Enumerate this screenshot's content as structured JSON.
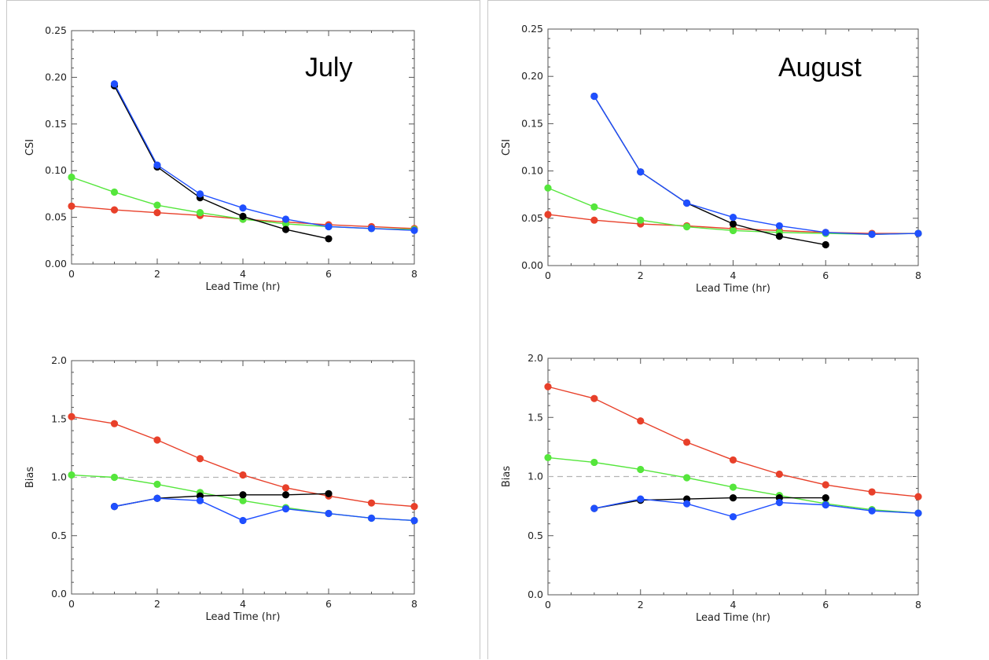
{
  "panels": [
    {
      "label": "July"
    },
    {
      "label": "August"
    }
  ],
  "colors": {
    "black": "#000000",
    "blue": "#1f4fff",
    "green": "#55e63c",
    "red": "#e8402a",
    "refline": "#b4b4b4"
  },
  "chart_data": [
    {
      "type": "line",
      "panel": "July",
      "xlabel": "Lead Time (hr)",
      "ylabel": "CSI",
      "xlim": [
        0,
        8
      ],
      "ylim": [
        0,
        0.25
      ],
      "xticks": [
        "0",
        "2",
        "4",
        "6",
        "8"
      ],
      "yticks": [
        "0.00",
        "0.05",
        "0.10",
        "0.15",
        "0.20",
        "0.25"
      ],
      "series": [
        {
          "color": "red",
          "x": [
            0,
            1,
            2,
            3,
            4,
            5,
            6,
            7,
            8
          ],
          "y": [
            0.062,
            0.058,
            0.055,
            0.052,
            0.048,
            0.045,
            0.042,
            0.04,
            0.038
          ]
        },
        {
          "color": "green",
          "x": [
            0,
            1,
            2,
            3,
            4,
            5,
            6,
            7,
            8
          ],
          "y": [
            0.093,
            0.077,
            0.063,
            0.055,
            0.048,
            0.043,
            0.04,
            0.038,
            0.037
          ]
        },
        {
          "color": "black",
          "x": [
            1,
            2,
            3,
            4,
            5,
            6
          ],
          "y": [
            0.191,
            0.104,
            0.071,
            0.051,
            0.037,
            0.027
          ]
        },
        {
          "color": "blue",
          "x": [
            1,
            2,
            3,
            4,
            5,
            6,
            7,
            8
          ],
          "y": [
            0.193,
            0.106,
            0.075,
            0.06,
            0.048,
            0.04,
            0.038,
            0.036
          ]
        }
      ]
    },
    {
      "type": "line",
      "panel": "July",
      "xlabel": "Lead Time (hr)",
      "ylabel": "Bias",
      "xlim": [
        0,
        8
      ],
      "ylim": [
        0,
        2
      ],
      "refline": 1.0,
      "xticks": [
        "0",
        "2",
        "4",
        "6",
        "8"
      ],
      "yticks": [
        "0.0",
        "0.5",
        "1.0",
        "1.5",
        "2.0"
      ],
      "series": [
        {
          "color": "red",
          "x": [
            0,
            1,
            2,
            3,
            4,
            5,
            6,
            7,
            8
          ],
          "y": [
            1.52,
            1.46,
            1.32,
            1.16,
            1.02,
            0.91,
            0.84,
            0.78,
            0.75
          ]
        },
        {
          "color": "green",
          "x": [
            0,
            1,
            2,
            3,
            4,
            5,
            6,
            7,
            8
          ],
          "y": [
            1.02,
            1.0,
            0.94,
            0.87,
            0.8,
            0.74,
            0.69,
            0.65,
            0.63
          ]
        },
        {
          "color": "black",
          "x": [
            1,
            2,
            3,
            4,
            5,
            6
          ],
          "y": [
            0.75,
            0.82,
            0.84,
            0.85,
            0.85,
            0.86
          ]
        },
        {
          "color": "blue",
          "x": [
            1,
            2,
            3,
            4,
            5,
            6,
            7,
            8
          ],
          "y": [
            0.75,
            0.82,
            0.8,
            0.63,
            0.73,
            0.69,
            0.65,
            0.63
          ]
        }
      ]
    },
    {
      "type": "line",
      "panel": "August",
      "xlabel": "Lead Time (hr)",
      "ylabel": "CSI",
      "xlim": [
        0,
        8
      ],
      "ylim": [
        0,
        0.25
      ],
      "xticks": [
        "0",
        "2",
        "4",
        "6",
        "8"
      ],
      "yticks": [
        "0.00",
        "0.05",
        "0.10",
        "0.15",
        "0.20",
        "0.25"
      ],
      "series": [
        {
          "color": "red",
          "x": [
            0,
            1,
            2,
            3,
            4,
            5,
            6,
            7,
            8
          ],
          "y": [
            0.054,
            0.048,
            0.044,
            0.042,
            0.039,
            0.037,
            0.035,
            0.034,
            0.034
          ]
        },
        {
          "color": "green",
          "x": [
            0,
            1,
            2,
            3,
            4,
            5,
            6,
            7,
            8
          ],
          "y": [
            0.082,
            0.062,
            0.048,
            0.041,
            0.037,
            0.035,
            0.034,
            0.033,
            0.034
          ]
        },
        {
          "color": "black",
          "x": [
            1,
            2,
            3,
            4,
            5,
            6
          ],
          "y": [
            0.179,
            0.099,
            0.066,
            0.044,
            0.031,
            0.022
          ]
        },
        {
          "color": "blue",
          "x": [
            1,
            2,
            3,
            4,
            5,
            6,
            7,
            8
          ],
          "y": [
            0.179,
            0.099,
            0.066,
            0.051,
            0.042,
            0.035,
            0.033,
            0.034
          ]
        }
      ]
    },
    {
      "type": "line",
      "panel": "August",
      "xlabel": "Lead Time (hr)",
      "ylabel": "Bias",
      "xlim": [
        0,
        8
      ],
      "ylim": [
        0,
        2
      ],
      "refline": 1.0,
      "xticks": [
        "0",
        "2",
        "4",
        "6",
        "8"
      ],
      "yticks": [
        "0.0",
        "0.5",
        "1.0",
        "1.5",
        "2.0"
      ],
      "series": [
        {
          "color": "red",
          "x": [
            0,
            1,
            2,
            3,
            4,
            5,
            6,
            7,
            8
          ],
          "y": [
            1.76,
            1.66,
            1.47,
            1.29,
            1.14,
            1.02,
            0.93,
            0.87,
            0.83
          ]
        },
        {
          "color": "green",
          "x": [
            0,
            1,
            2,
            3,
            4,
            5,
            6,
            7,
            8
          ],
          "y": [
            1.16,
            1.12,
            1.06,
            0.99,
            0.91,
            0.84,
            0.77,
            0.72,
            0.69
          ]
        },
        {
          "color": "black",
          "x": [
            1,
            2,
            3,
            4,
            5,
            6
          ],
          "y": [
            0.73,
            0.8,
            0.81,
            0.82,
            0.82,
            0.82
          ]
        },
        {
          "color": "blue",
          "x": [
            1,
            2,
            3,
            4,
            5,
            6,
            7,
            8
          ],
          "y": [
            0.73,
            0.81,
            0.77,
            0.66,
            0.78,
            0.76,
            0.71,
            0.69
          ]
        }
      ]
    }
  ]
}
